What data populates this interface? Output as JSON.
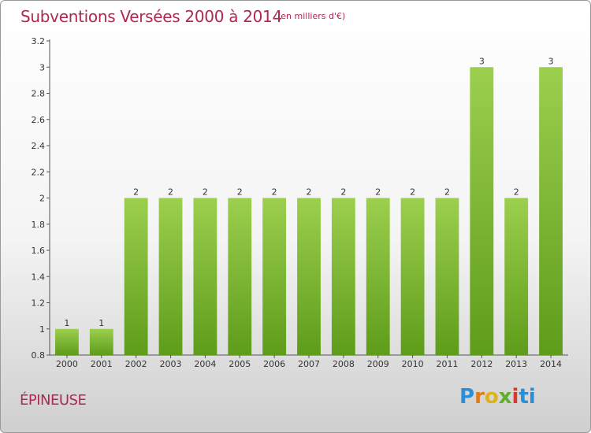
{
  "header": {
    "title": "Subventions Versées 2000 à 2014",
    "subtitle": "(en milliers d'€)"
  },
  "footer": {
    "commune": "ÉPINEUSE",
    "logo_letters": [
      "P",
      "r",
      "o",
      "x",
      "i",
      "ti"
    ]
  },
  "colors": {
    "accent": "#b0284f",
    "bar_top": "#9ccf4e",
    "bar_bottom": "#5e9c1a"
  },
  "chart_data": {
    "type": "bar",
    "title": "Subventions Versées 2000 à 2014",
    "subtitle": "(en milliers d'€)",
    "categories": [
      "2000",
      "2001",
      "2002",
      "2003",
      "2004",
      "2005",
      "2006",
      "2007",
      "2008",
      "2009",
      "2010",
      "2011",
      "2012",
      "2013",
      "2014"
    ],
    "values": [
      1,
      1,
      2,
      2,
      2,
      2,
      2,
      2,
      2,
      2,
      2,
      2,
      3,
      2,
      3
    ],
    "data_labels": [
      "1",
      "1",
      "2",
      "2",
      "2",
      "2",
      "2",
      "2",
      "2",
      "2",
      "2",
      "2",
      "3",
      "2",
      "3"
    ],
    "xlabel": "",
    "ylabel": "",
    "ylim": [
      0.8,
      3.2
    ],
    "yticks": [
      0.8,
      1,
      1.2,
      1.4,
      1.6,
      1.8,
      2,
      2.2,
      2.4,
      2.6,
      2.8,
      3,
      3.2
    ],
    "ytick_labels": [
      "0.8",
      "1",
      "1.2",
      "1.4",
      "1.6",
      "1.8",
      "2",
      "2.2",
      "2.4",
      "2.6",
      "2.8",
      "3",
      "3.2"
    ],
    "grid": false,
    "legend": "none"
  }
}
